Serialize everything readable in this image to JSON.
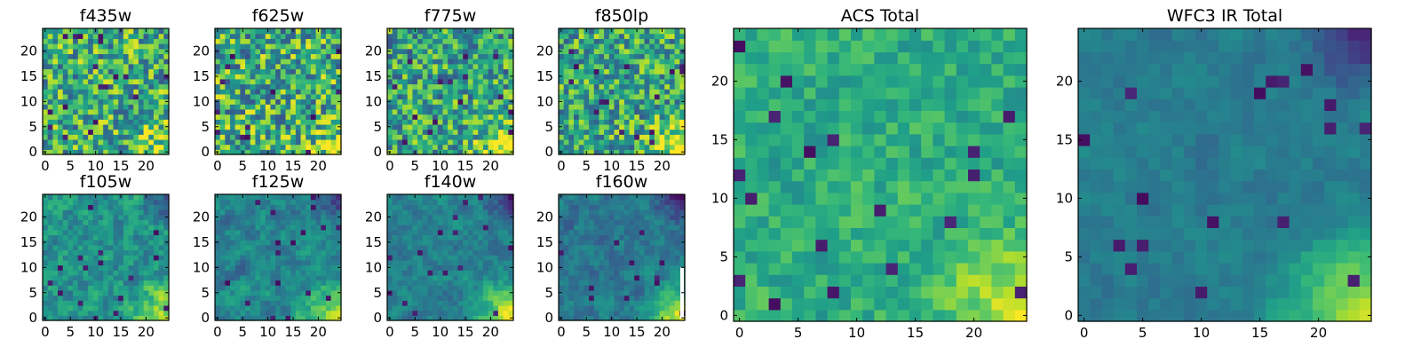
{
  "chart_data": [
    {
      "type": "heatmap",
      "title": "f435w",
      "x_ticks": [
        "0",
        "5",
        "10",
        "15",
        "20"
      ],
      "y_ticks": [
        "0",
        "5",
        "10",
        "15",
        "20"
      ],
      "xlim": [
        -0.5,
        24.5
      ],
      "ylim": [
        -0.5,
        24.5
      ],
      "grid": false,
      "colormap": "viridis",
      "pattern": {
        "base": 0.62,
        "spread": 0.34,
        "smooth": 0.0,
        "bright_corner": 0.25,
        "dark_corner": 0.0
      }
    },
    {
      "type": "heatmap",
      "title": "f625w",
      "x_ticks": [
        "0",
        "5",
        "10",
        "15",
        "20"
      ],
      "y_ticks": [
        "0",
        "5",
        "10",
        "15",
        "20"
      ],
      "xlim": [
        -0.5,
        24.5
      ],
      "ylim": [
        -0.5,
        24.5
      ],
      "grid": false,
      "colormap": "viridis",
      "pattern": {
        "base": 0.62,
        "spread": 0.36,
        "smooth": 0.0,
        "bright_corner": 0.25,
        "dark_corner": 0.0
      }
    },
    {
      "type": "heatmap",
      "title": "f775w",
      "x_ticks": [
        "0",
        "5",
        "10",
        "15",
        "20"
      ],
      "y_ticks": [
        "0",
        "5",
        "10",
        "15",
        "20"
      ],
      "xlim": [
        -0.5,
        24.5
      ],
      "ylim": [
        -0.5,
        24.5
      ],
      "grid": false,
      "colormap": "viridis",
      "pattern": {
        "base": 0.58,
        "spread": 0.32,
        "smooth": 0.0,
        "bright_corner": 0.38,
        "dark_corner": 0.0
      }
    },
    {
      "type": "heatmap",
      "title": "f850lp",
      "x_ticks": [
        "0",
        "5",
        "10",
        "15",
        "20"
      ],
      "y_ticks": [
        "0",
        "5",
        "10",
        "15",
        "20"
      ],
      "xlim": [
        -0.5,
        24.5
      ],
      "ylim": [
        -0.5,
        24.5
      ],
      "grid": false,
      "colormap": "viridis",
      "pattern": {
        "base": 0.6,
        "spread": 0.32,
        "smooth": 0.0,
        "bright_corner": 0.42,
        "dark_corner": 0.0
      }
    },
    {
      "type": "heatmap",
      "title": "f105w",
      "x_ticks": [
        "0",
        "5",
        "10",
        "15",
        "20"
      ],
      "y_ticks": [
        "0",
        "5",
        "10",
        "15",
        "20"
      ],
      "xlim": [
        -0.5,
        24.5
      ],
      "ylim": [
        -0.5,
        24.5
      ],
      "grid": false,
      "colormap": "viridis",
      "pattern": {
        "base": 0.5,
        "spread": 0.26,
        "smooth": 0.55,
        "bright_corner": 0.45,
        "dark_corner": 0.25
      }
    },
    {
      "type": "heatmap",
      "title": "f125w",
      "x_ticks": [
        "0",
        "5",
        "10",
        "15",
        "20"
      ],
      "y_ticks": [
        "0",
        "5",
        "10",
        "15",
        "20"
      ],
      "xlim": [
        -0.5,
        24.5
      ],
      "ylim": [
        -0.5,
        24.5
      ],
      "grid": false,
      "colormap": "viridis",
      "pattern": {
        "base": 0.45,
        "spread": 0.22,
        "smooth": 0.6,
        "bright_corner": 0.5,
        "dark_corner": 0.3
      }
    },
    {
      "type": "heatmap",
      "title": "f140w",
      "x_ticks": [
        "0",
        "5",
        "10",
        "15",
        "20"
      ],
      "y_ticks": [
        "0",
        "5",
        "10",
        "15",
        "20"
      ],
      "xlim": [
        -0.5,
        24.5
      ],
      "ylim": [
        -0.5,
        24.5
      ],
      "grid": false,
      "colormap": "viridis",
      "pattern": {
        "base": 0.43,
        "spread": 0.2,
        "smooth": 0.6,
        "bright_corner": 0.55,
        "dark_corner": 0.35
      }
    },
    {
      "type": "heatmap",
      "title": "f160w",
      "x_ticks": [
        "0",
        "5",
        "10",
        "15",
        "20"
      ],
      "y_ticks": [
        "0",
        "5",
        "10",
        "15",
        "20"
      ],
      "xlim": [
        -0.5,
        24.5
      ],
      "ylim": [
        -0.5,
        24.5
      ],
      "grid": false,
      "colormap": "viridis",
      "pattern": {
        "base": 0.4,
        "spread": 0.2,
        "smooth": 0.6,
        "bright_corner": 0.6,
        "dark_corner": 0.35
      }
    },
    {
      "type": "heatmap",
      "title": "ACS Total",
      "x_ticks": [
        "0",
        "5",
        "10",
        "15",
        "20"
      ],
      "y_ticks": [
        "0",
        "5",
        "10",
        "15",
        "20"
      ],
      "xlim": [
        -0.5,
        24.5
      ],
      "ylim": [
        -0.5,
        24.5
      ],
      "grid": false,
      "colormap": "viridis",
      "pattern": {
        "base": 0.62,
        "spread": 0.18,
        "smooth": 0.35,
        "bright_corner": 0.3,
        "dark_corner": 0.0
      }
    },
    {
      "type": "heatmap",
      "title": "WFC3 IR Total",
      "x_ticks": [
        "0",
        "5",
        "10",
        "15",
        "20"
      ],
      "y_ticks": [
        "0",
        "5",
        "10",
        "15",
        "20"
      ],
      "xlim": [
        -0.5,
        24.5
      ],
      "ylim": [
        -0.5,
        24.5
      ],
      "grid": false,
      "colormap": "viridis",
      "pattern": {
        "base": 0.42,
        "spread": 0.12,
        "smooth": 0.6,
        "bright_corner": 0.5,
        "dark_corner": 0.35
      }
    }
  ]
}
